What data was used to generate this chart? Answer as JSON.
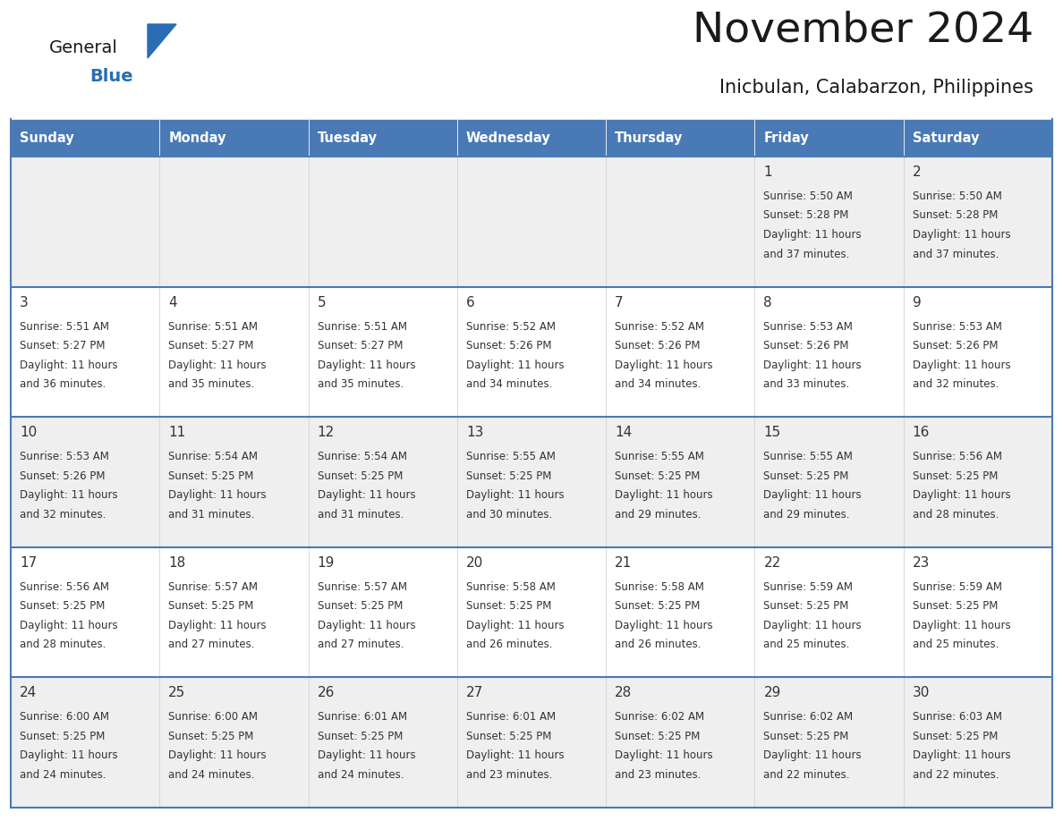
{
  "title": "November 2024",
  "subtitle": "Inicbulan, Calabarzon, Philippines",
  "days_of_week": [
    "Sunday",
    "Monday",
    "Tuesday",
    "Wednesday",
    "Thursday",
    "Friday",
    "Saturday"
  ],
  "header_bg": "#4a7ab5",
  "header_text": "#ffffff",
  "cell_bg_light": "#efefef",
  "cell_bg_white": "#ffffff",
  "row_border_color": "#4a7ab5",
  "text_color": "#333333",
  "title_color": "#1a1a1a",
  "subtitle_color": "#1a1a1a",
  "logo_general_color": "#1a1a1a",
  "logo_blue_color": "#2a6db5",
  "calendar": [
    [
      null,
      null,
      null,
      null,
      null,
      1,
      2
    ],
    [
      3,
      4,
      5,
      6,
      7,
      8,
      9
    ],
    [
      10,
      11,
      12,
      13,
      14,
      15,
      16
    ],
    [
      17,
      18,
      19,
      20,
      21,
      22,
      23
    ],
    [
      24,
      25,
      26,
      27,
      28,
      29,
      30
    ]
  ],
  "cell_data": {
    "1": {
      "sunrise": "5:50 AM",
      "sunset": "5:28 PM",
      "daylight": "11 hours",
      "daylight2": "and 37 minutes."
    },
    "2": {
      "sunrise": "5:50 AM",
      "sunset": "5:28 PM",
      "daylight": "11 hours",
      "daylight2": "and 37 minutes."
    },
    "3": {
      "sunrise": "5:51 AM",
      "sunset": "5:27 PM",
      "daylight": "11 hours",
      "daylight2": "and 36 minutes."
    },
    "4": {
      "sunrise": "5:51 AM",
      "sunset": "5:27 PM",
      "daylight": "11 hours",
      "daylight2": "and 35 minutes."
    },
    "5": {
      "sunrise": "5:51 AM",
      "sunset": "5:27 PM",
      "daylight": "11 hours",
      "daylight2": "and 35 minutes."
    },
    "6": {
      "sunrise": "5:52 AM",
      "sunset": "5:26 PM",
      "daylight": "11 hours",
      "daylight2": "and 34 minutes."
    },
    "7": {
      "sunrise": "5:52 AM",
      "sunset": "5:26 PM",
      "daylight": "11 hours",
      "daylight2": "and 34 minutes."
    },
    "8": {
      "sunrise": "5:53 AM",
      "sunset": "5:26 PM",
      "daylight": "11 hours",
      "daylight2": "and 33 minutes."
    },
    "9": {
      "sunrise": "5:53 AM",
      "sunset": "5:26 PM",
      "daylight": "11 hours",
      "daylight2": "and 32 minutes."
    },
    "10": {
      "sunrise": "5:53 AM",
      "sunset": "5:26 PM",
      "daylight": "11 hours",
      "daylight2": "and 32 minutes."
    },
    "11": {
      "sunrise": "5:54 AM",
      "sunset": "5:25 PM",
      "daylight": "11 hours",
      "daylight2": "and 31 minutes."
    },
    "12": {
      "sunrise": "5:54 AM",
      "sunset": "5:25 PM",
      "daylight": "11 hours",
      "daylight2": "and 31 minutes."
    },
    "13": {
      "sunrise": "5:55 AM",
      "sunset": "5:25 PM",
      "daylight": "11 hours",
      "daylight2": "and 30 minutes."
    },
    "14": {
      "sunrise": "5:55 AM",
      "sunset": "5:25 PM",
      "daylight": "11 hours",
      "daylight2": "and 29 minutes."
    },
    "15": {
      "sunrise": "5:55 AM",
      "sunset": "5:25 PM",
      "daylight": "11 hours",
      "daylight2": "and 29 minutes."
    },
    "16": {
      "sunrise": "5:56 AM",
      "sunset": "5:25 PM",
      "daylight": "11 hours",
      "daylight2": "and 28 minutes."
    },
    "17": {
      "sunrise": "5:56 AM",
      "sunset": "5:25 PM",
      "daylight": "11 hours",
      "daylight2": "and 28 minutes."
    },
    "18": {
      "sunrise": "5:57 AM",
      "sunset": "5:25 PM",
      "daylight": "11 hours",
      "daylight2": "and 27 minutes."
    },
    "19": {
      "sunrise": "5:57 AM",
      "sunset": "5:25 PM",
      "daylight": "11 hours",
      "daylight2": "and 27 minutes."
    },
    "20": {
      "sunrise": "5:58 AM",
      "sunset": "5:25 PM",
      "daylight": "11 hours",
      "daylight2": "and 26 minutes."
    },
    "21": {
      "sunrise": "5:58 AM",
      "sunset": "5:25 PM",
      "daylight": "11 hours",
      "daylight2": "and 26 minutes."
    },
    "22": {
      "sunrise": "5:59 AM",
      "sunset": "5:25 PM",
      "daylight": "11 hours",
      "daylight2": "and 25 minutes."
    },
    "23": {
      "sunrise": "5:59 AM",
      "sunset": "5:25 PM",
      "daylight": "11 hours",
      "daylight2": "and 25 minutes."
    },
    "24": {
      "sunrise": "6:00 AM",
      "sunset": "5:25 PM",
      "daylight": "11 hours",
      "daylight2": "and 24 minutes."
    },
    "25": {
      "sunrise": "6:00 AM",
      "sunset": "5:25 PM",
      "daylight": "11 hours",
      "daylight2": "and 24 minutes."
    },
    "26": {
      "sunrise": "6:01 AM",
      "sunset": "5:25 PM",
      "daylight": "11 hours",
      "daylight2": "and 24 minutes."
    },
    "27": {
      "sunrise": "6:01 AM",
      "sunset": "5:25 PM",
      "daylight": "11 hours",
      "daylight2": "and 23 minutes."
    },
    "28": {
      "sunrise": "6:02 AM",
      "sunset": "5:25 PM",
      "daylight": "11 hours",
      "daylight2": "and 23 minutes."
    },
    "29": {
      "sunrise": "6:02 AM",
      "sunset": "5:25 PM",
      "daylight": "11 hours",
      "daylight2": "and 22 minutes."
    },
    "30": {
      "sunrise": "6:03 AM",
      "sunset": "5:25 PM",
      "daylight": "11 hours",
      "daylight2": "and 22 minutes."
    }
  },
  "row_bg": [
    "#efefef",
    "#ffffff",
    "#efefef",
    "#ffffff",
    "#efefef"
  ]
}
